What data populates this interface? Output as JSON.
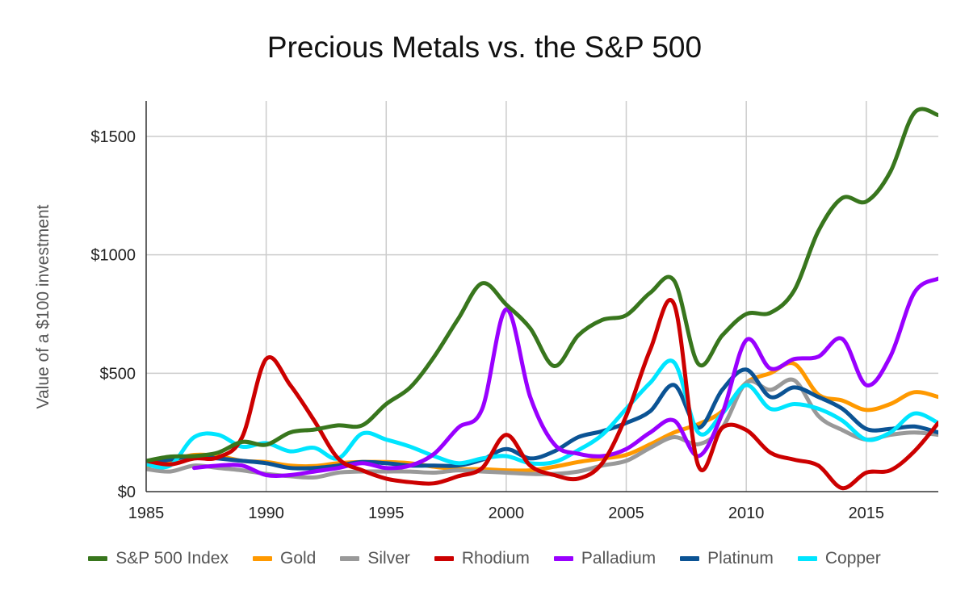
{
  "chart_data": {
    "type": "line",
    "title": "Precious Metals vs. the S&P 500",
    "ylabel": "Value of a $100 investment",
    "xlabel": "",
    "xlim": [
      1985,
      2018
    ],
    "ylim": [
      0,
      1650
    ],
    "x_ticks": [
      "1985",
      "1990",
      "1995",
      "2000",
      "2005",
      "2010",
      "2015"
    ],
    "y_ticks": [
      {
        "value": 0,
        "label": "$0"
      },
      {
        "value": 500,
        "label": "$500"
      },
      {
        "value": 1000,
        "label": "$1000"
      },
      {
        "value": 1500,
        "label": "$1500"
      }
    ],
    "grid": true,
    "legend_position": "bottom",
    "series": [
      {
        "name": "S&P 500 Index",
        "color": "#38761d",
        "points": [
          [
            1985,
            130
          ],
          [
            1986,
            148
          ],
          [
            1987,
            150
          ],
          [
            1988,
            165
          ],
          [
            1989,
            210
          ],
          [
            1990,
            198
          ],
          [
            1991,
            250
          ],
          [
            1992,
            262
          ],
          [
            1993,
            280
          ],
          [
            1994,
            280
          ],
          [
            1995,
            370
          ],
          [
            1996,
            440
          ],
          [
            1997,
            570
          ],
          [
            1998,
            730
          ],
          [
            1999,
            880
          ],
          [
            2000,
            790
          ],
          [
            2001,
            690
          ],
          [
            2002,
            530
          ],
          [
            2003,
            660
          ],
          [
            2004,
            725
          ],
          [
            2005,
            745
          ],
          [
            2006,
            840
          ],
          [
            2007,
            890
          ],
          [
            2008,
            540
          ],
          [
            2009,
            660
          ],
          [
            2010,
            750
          ],
          [
            2011,
            755
          ],
          [
            2012,
            850
          ],
          [
            2013,
            1100
          ],
          [
            2014,
            1240
          ],
          [
            2015,
            1225
          ],
          [
            2016,
            1350
          ],
          [
            2017,
            1600
          ],
          [
            2018,
            1590
          ]
        ]
      },
      {
        "name": "Gold",
        "color": "#ff9900",
        "points": [
          [
            1985,
            105
          ],
          [
            1986,
            130
          ],
          [
            1987,
            155
          ],
          [
            1988,
            150
          ],
          [
            1989,
            130
          ],
          [
            1990,
            125
          ],
          [
            1991,
            110
          ],
          [
            1992,
            108
          ],
          [
            1993,
            120
          ],
          [
            1994,
            125
          ],
          [
            1995,
            125
          ],
          [
            1996,
            120
          ],
          [
            1997,
            105
          ],
          [
            1998,
            95
          ],
          [
            1999,
            95
          ],
          [
            2000,
            90
          ],
          [
            2001,
            90
          ],
          [
            2002,
            105
          ],
          [
            2003,
            125
          ],
          [
            2004,
            140
          ],
          [
            2005,
            155
          ],
          [
            2006,
            200
          ],
          [
            2007,
            250
          ],
          [
            2008,
            285
          ],
          [
            2009,
            340
          ],
          [
            2010,
            460
          ],
          [
            2011,
            500
          ],
          [
            2012,
            540
          ],
          [
            2013,
            410
          ],
          [
            2014,
            385
          ],
          [
            2015,
            345
          ],
          [
            2016,
            370
          ],
          [
            2017,
            420
          ],
          [
            2018,
            400
          ]
        ]
      },
      {
        "name": "Silver",
        "color": "#999999",
        "points": [
          [
            1985,
            95
          ],
          [
            1986,
            85
          ],
          [
            1987,
            110
          ],
          [
            1988,
            100
          ],
          [
            1989,
            90
          ],
          [
            1990,
            75
          ],
          [
            1991,
            65
          ],
          [
            1992,
            60
          ],
          [
            1993,
            80
          ],
          [
            1994,
            85
          ],
          [
            1995,
            85
          ],
          [
            1996,
            85
          ],
          [
            1997,
            80
          ],
          [
            1998,
            90
          ],
          [
            1999,
            85
          ],
          [
            2000,
            80
          ],
          [
            2001,
            75
          ],
          [
            2002,
            75
          ],
          [
            2003,
            85
          ],
          [
            2004,
            110
          ],
          [
            2005,
            130
          ],
          [
            2006,
            185
          ],
          [
            2007,
            230
          ],
          [
            2008,
            200
          ],
          [
            2009,
            270
          ],
          [
            2010,
            460
          ],
          [
            2011,
            430
          ],
          [
            2012,
            470
          ],
          [
            2013,
            320
          ],
          [
            2014,
            260
          ],
          [
            2015,
            220
          ],
          [
            2016,
            240
          ],
          [
            2017,
            250
          ],
          [
            2018,
            240
          ]
        ]
      },
      {
        "name": "Rhodium",
        "color": "#cc0000",
        "points": [
          [
            1985,
            130
          ],
          [
            1986,
            115
          ],
          [
            1987,
            140
          ],
          [
            1988,
            145
          ],
          [
            1989,
            230
          ],
          [
            1990,
            560
          ],
          [
            1991,
            450
          ],
          [
            1992,
            300
          ],
          [
            1993,
            140
          ],
          [
            1994,
            90
          ],
          [
            1995,
            55
          ],
          [
            1996,
            40
          ],
          [
            1997,
            35
          ],
          [
            1998,
            65
          ],
          [
            1999,
            100
          ],
          [
            2000,
            240
          ],
          [
            2001,
            110
          ],
          [
            2002,
            70
          ],
          [
            2003,
            55
          ],
          [
            2004,
            120
          ],
          [
            2005,
            320
          ],
          [
            2006,
            600
          ],
          [
            2007,
            790
          ],
          [
            2008,
            110
          ],
          [
            2009,
            270
          ],
          [
            2010,
            260
          ],
          [
            2011,
            165
          ],
          [
            2012,
            135
          ],
          [
            2013,
            110
          ],
          [
            2014,
            15
          ],
          [
            2015,
            80
          ],
          [
            2016,
            90
          ],
          [
            2017,
            170
          ],
          [
            2018,
            290
          ]
        ]
      },
      {
        "name": "Palladium",
        "color": "#9900ff",
        "points": [
          [
            1987,
            100
          ],
          [
            1988,
            110
          ],
          [
            1989,
            110
          ],
          [
            1990,
            70
          ],
          [
            1991,
            70
          ],
          [
            1992,
            85
          ],
          [
            1993,
            100
          ],
          [
            1994,
            120
          ],
          [
            1995,
            100
          ],
          [
            1996,
            110
          ],
          [
            1997,
            160
          ],
          [
            1998,
            270
          ],
          [
            1999,
            350
          ],
          [
            2000,
            770
          ],
          [
            2001,
            400
          ],
          [
            2002,
            200
          ],
          [
            2003,
            160
          ],
          [
            2004,
            150
          ],
          [
            2005,
            180
          ],
          [
            2006,
            250
          ],
          [
            2007,
            300
          ],
          [
            2008,
            150
          ],
          [
            2009,
            330
          ],
          [
            2010,
            640
          ],
          [
            2011,
            520
          ],
          [
            2012,
            560
          ],
          [
            2013,
            570
          ],
          [
            2014,
            645
          ],
          [
            2015,
            450
          ],
          [
            2016,
            570
          ],
          [
            2017,
            840
          ],
          [
            2018,
            900
          ]
        ]
      },
      {
        "name": "Platinum",
        "color": "#0b5394",
        "points": [
          [
            1985,
            120
          ],
          [
            1986,
            135
          ],
          [
            1987,
            150
          ],
          [
            1988,
            140
          ],
          [
            1989,
            130
          ],
          [
            1990,
            120
          ],
          [
            1991,
            100
          ],
          [
            1992,
            100
          ],
          [
            1993,
            110
          ],
          [
            1994,
            125
          ],
          [
            1995,
            120
          ],
          [
            1996,
            110
          ],
          [
            1997,
            110
          ],
          [
            1998,
            110
          ],
          [
            1999,
            135
          ],
          [
            2000,
            180
          ],
          [
            2001,
            140
          ],
          [
            2002,
            170
          ],
          [
            2003,
            230
          ],
          [
            2004,
            255
          ],
          [
            2005,
            290
          ],
          [
            2006,
            340
          ],
          [
            2007,
            450
          ],
          [
            2008,
            270
          ],
          [
            2009,
            430
          ],
          [
            2010,
            515
          ],
          [
            2011,
            400
          ],
          [
            2012,
            440
          ],
          [
            2013,
            400
          ],
          [
            2014,
            350
          ],
          [
            2015,
            265
          ],
          [
            2016,
            265
          ],
          [
            2017,
            275
          ],
          [
            2018,
            250
          ]
        ]
      },
      {
        "name": "Copper",
        "color": "#00e5ff",
        "points": [
          [
            1985,
            115
          ],
          [
            1986,
            110
          ],
          [
            1987,
            230
          ],
          [
            1988,
            240
          ],
          [
            1989,
            190
          ],
          [
            1990,
            205
          ],
          [
            1991,
            170
          ],
          [
            1992,
            185
          ],
          [
            1993,
            140
          ],
          [
            1994,
            245
          ],
          [
            1995,
            220
          ],
          [
            1996,
            190
          ],
          [
            1997,
            150
          ],
          [
            1998,
            120
          ],
          [
            1999,
            140
          ],
          [
            2000,
            150
          ],
          [
            2001,
            120
          ],
          [
            2002,
            125
          ],
          [
            2003,
            175
          ],
          [
            2004,
            240
          ],
          [
            2005,
            350
          ],
          [
            2006,
            460
          ],
          [
            2007,
            545
          ],
          [
            2008,
            250
          ],
          [
            2009,
            330
          ],
          [
            2010,
            450
          ],
          [
            2011,
            350
          ],
          [
            2012,
            370
          ],
          [
            2013,
            350
          ],
          [
            2014,
            300
          ],
          [
            2015,
            220
          ],
          [
            2016,
            250
          ],
          [
            2017,
            330
          ],
          [
            2018,
            290
          ]
        ]
      }
    ]
  }
}
